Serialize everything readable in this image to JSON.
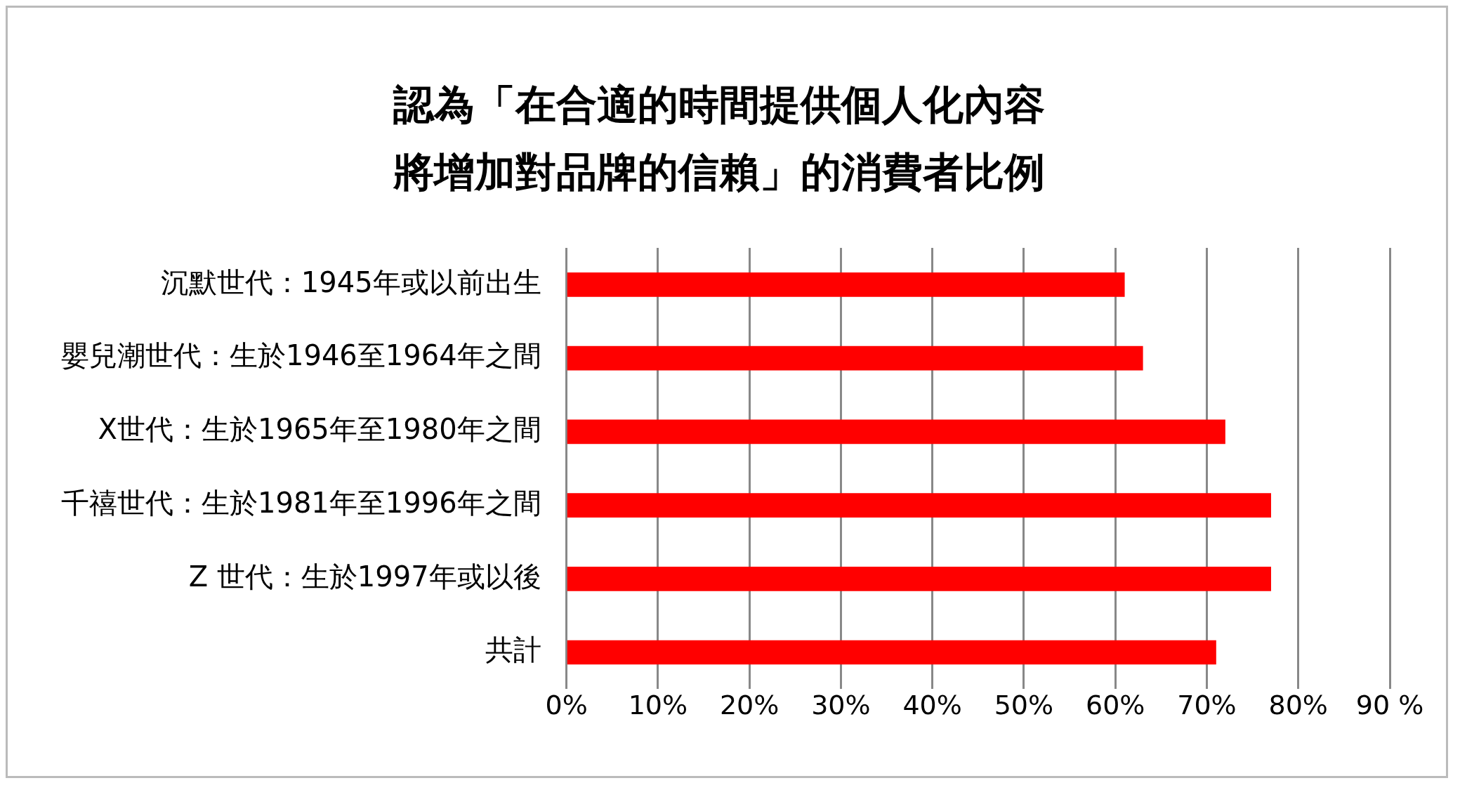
{
  "chart_data": {
    "type": "bar",
    "orientation": "horizontal",
    "title": "認為「在合適的時間提供個人化內容將增加對品牌的信賴」的消費者比例",
    "categories": [
      "沉默世代：1945年或以前出生",
      "嬰兒潮世代：生於1946至1964年之間",
      "X世代：生於1965年至1980年之間",
      "千禧世代：生於1981年至1996年之間",
      "Z 世代：生於1997年或以後",
      "共計"
    ],
    "values": [
      61,
      63,
      72,
      77,
      77,
      71
    ],
    "color": "#ff0000",
    "xlim": [
      0,
      90
    ],
    "xticks": [
      {
        "value": 0,
        "label": "0%"
      },
      {
        "value": 10,
        "label": "10%"
      },
      {
        "value": 20,
        "label": "20%"
      },
      {
        "value": 30,
        "label": "30%"
      },
      {
        "value": 40,
        "label": "40%"
      },
      {
        "value": 50,
        "label": "50%"
      },
      {
        "value": 60,
        "label": "60%"
      },
      {
        "value": 70,
        "label": "70%"
      },
      {
        "value": 80,
        "label": "80%"
      },
      {
        "value": 90,
        "label": "90 %"
      }
    ],
    "grid": "x",
    "legend": false
  }
}
